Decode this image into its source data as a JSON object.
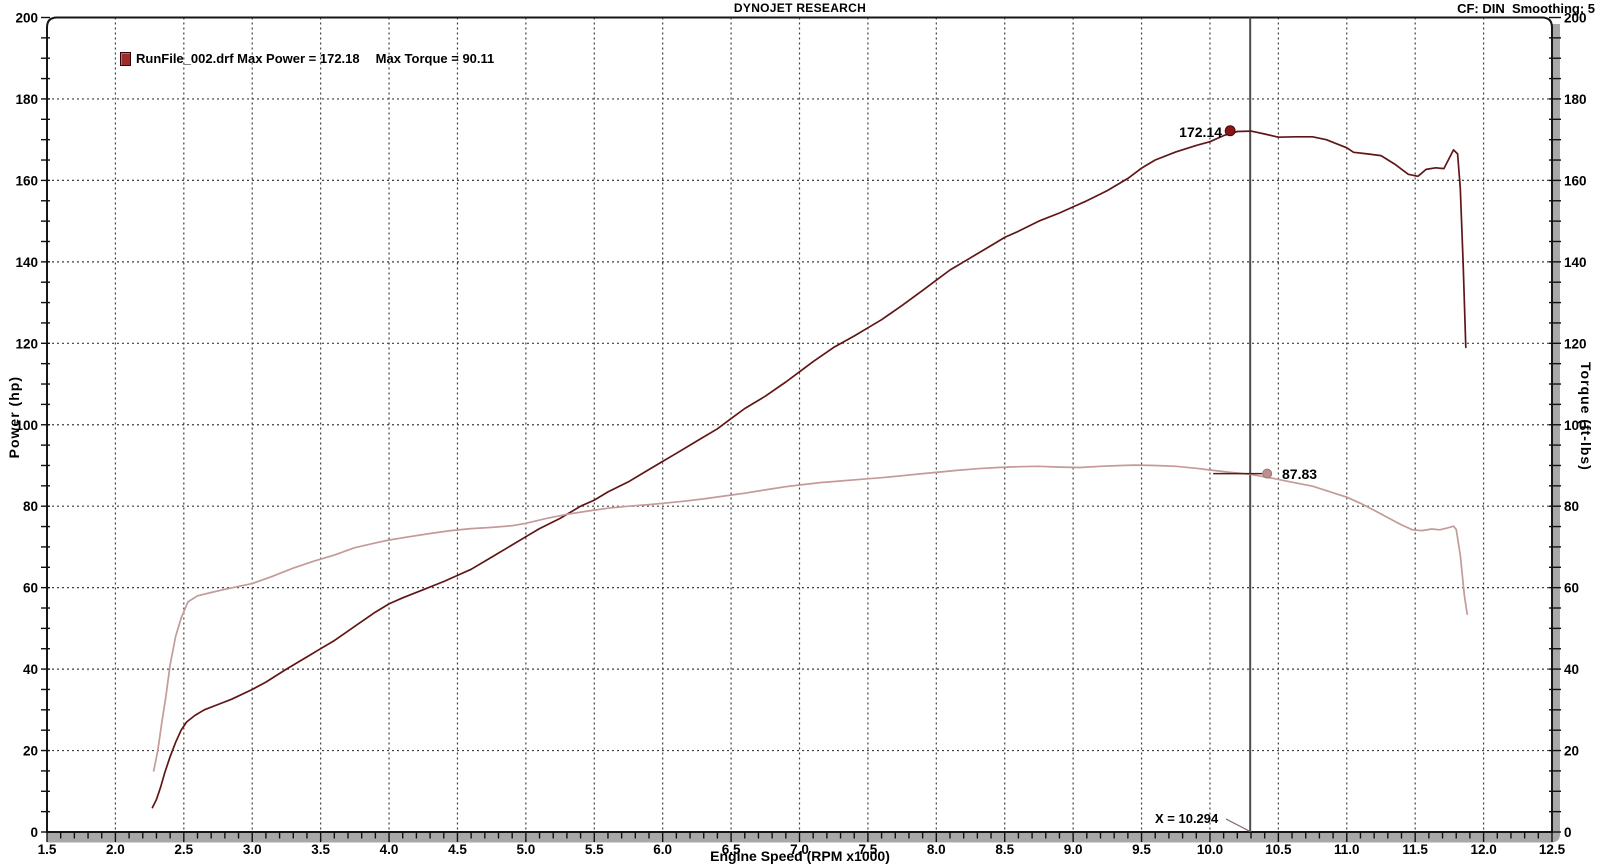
{
  "header": {
    "title": "DYNOJET RESEARCH",
    "corner_note": "CF: DIN  Smoothing: 5"
  },
  "legend": {
    "entry": "RunFile_002.drf Max Power = 172.18",
    "entry2": "Max Torque = 90.11",
    "marker_color": "#9e2c2c"
  },
  "cursor": {
    "x_label": "X = 10.294",
    "x_value": 10.294,
    "power_readout": "172.14",
    "torque_readout": "87.83"
  },
  "axes": {
    "x": {
      "label": "Engine Speed (RPM x1000)",
      "min": 1.5,
      "max": 12.5,
      "major_step": 0.5,
      "minor_step": 0.1
    },
    "y_left": {
      "label": "Power (hp)",
      "min": 0,
      "max": 200,
      "major_step": 20,
      "minor_step": 5
    },
    "y_right": {
      "label": "Torque (ft-lbs)",
      "min": 0,
      "max": 200,
      "major_step": 20,
      "minor_step": 5
    }
  },
  "colors": {
    "power_line": "#601616",
    "torque_line": "#c49a9a",
    "power_dot": "#8b1515",
    "torque_dot": "#bd8f8f",
    "grid": "#3f3f3f",
    "frame": "#161616",
    "axis_bar": "#a8a8a8",
    "cursor_line": "#4d4d4d",
    "leader": "#806060"
  },
  "chart_data": {
    "type": "line",
    "title": "DYNOJET RESEARCH",
    "xlabel": "Engine Speed (RPM x1000)",
    "ylabel_left": "Power (hp)",
    "ylabel_right": "Torque (ft-lbs)",
    "xlim": [
      1.5,
      12.5
    ],
    "ylim": [
      0,
      200
    ],
    "grid": "dashed",
    "legend_position": "top-left",
    "cursor": {
      "x": 10.294,
      "power": 172.14,
      "torque": 87.83
    },
    "series": [
      {
        "name": "Power (hp)",
        "file": "RunFile_002.drf",
        "max": 172.18,
        "color": "#601616",
        "points": [
          [
            2.27,
            6
          ],
          [
            2.3,
            8
          ],
          [
            2.33,
            11
          ],
          [
            2.36,
            14.5
          ],
          [
            2.4,
            18.5
          ],
          [
            2.44,
            22
          ],
          [
            2.48,
            25
          ],
          [
            2.52,
            27
          ],
          [
            2.58,
            28.6
          ],
          [
            2.65,
            30
          ],
          [
            2.75,
            31.3
          ],
          [
            2.85,
            32.6
          ],
          [
            3.0,
            35
          ],
          [
            3.1,
            36.8
          ],
          [
            3.25,
            40
          ],
          [
            3.4,
            43
          ],
          [
            3.5,
            45
          ],
          [
            3.6,
            47
          ],
          [
            3.75,
            50.5
          ],
          [
            3.9,
            54
          ],
          [
            4.0,
            56
          ],
          [
            4.1,
            57.5
          ],
          [
            4.25,
            59.5
          ],
          [
            4.4,
            61.5
          ],
          [
            4.5,
            63
          ],
          [
            4.6,
            64.5
          ],
          [
            4.75,
            67.5
          ],
          [
            4.9,
            70.5
          ],
          [
            5.0,
            72.5
          ],
          [
            5.1,
            74.5
          ],
          [
            5.25,
            77
          ],
          [
            5.4,
            80
          ],
          [
            5.5,
            81.5
          ],
          [
            5.6,
            83.5
          ],
          [
            5.75,
            86
          ],
          [
            5.9,
            89
          ],
          [
            6.0,
            91
          ],
          [
            6.1,
            93
          ],
          [
            6.25,
            96
          ],
          [
            6.4,
            99
          ],
          [
            6.5,
            101.5
          ],
          [
            6.6,
            104
          ],
          [
            6.75,
            107
          ],
          [
            6.9,
            110.5
          ],
          [
            7.0,
            113
          ],
          [
            7.1,
            115.5
          ],
          [
            7.25,
            119
          ],
          [
            7.4,
            121.8
          ],
          [
            7.5,
            123.8
          ],
          [
            7.6,
            125.8
          ],
          [
            7.75,
            129.3
          ],
          [
            7.9,
            133
          ],
          [
            8.0,
            135.5
          ],
          [
            8.1,
            138
          ],
          [
            8.25,
            141
          ],
          [
            8.4,
            144
          ],
          [
            8.5,
            146
          ],
          [
            8.6,
            147.5
          ],
          [
            8.75,
            150
          ],
          [
            8.9,
            152
          ],
          [
            9.0,
            153.5
          ],
          [
            9.1,
            155
          ],
          [
            9.25,
            157.5
          ],
          [
            9.4,
            160.5
          ],
          [
            9.5,
            163
          ],
          [
            9.6,
            165
          ],
          [
            9.75,
            167
          ],
          [
            9.9,
            168.6
          ],
          [
            10.0,
            169.5
          ],
          [
            10.1,
            171
          ],
          [
            10.2,
            172
          ],
          [
            10.3,
            172.1
          ],
          [
            10.4,
            171.4
          ],
          [
            10.5,
            170.6
          ],
          [
            10.62,
            170.7
          ],
          [
            10.75,
            170.7
          ],
          [
            10.85,
            170
          ],
          [
            11.0,
            168
          ],
          [
            11.05,
            166.9
          ],
          [
            11.15,
            166.5
          ],
          [
            11.25,
            166.1
          ],
          [
            11.35,
            164
          ],
          [
            11.45,
            161.5
          ],
          [
            11.52,
            161
          ],
          [
            11.58,
            162.7
          ],
          [
            11.65,
            163.1
          ],
          [
            11.71,
            162.9
          ],
          [
            11.78,
            167.5
          ],
          [
            11.81,
            166.5
          ],
          [
            11.83,
            158
          ],
          [
            11.85,
            140
          ],
          [
            11.87,
            119
          ]
        ]
      },
      {
        "name": "Torque (ft-lbs)",
        "file": "RunFile_002.drf",
        "max": 90.11,
        "color": "#c49a9a",
        "points": [
          [
            2.28,
            15
          ],
          [
            2.31,
            20
          ],
          [
            2.34,
            27
          ],
          [
            2.37,
            33.5
          ],
          [
            2.4,
            41
          ],
          [
            2.44,
            48
          ],
          [
            2.48,
            52.5
          ],
          [
            2.53,
            56.5
          ],
          [
            2.6,
            58
          ],
          [
            2.7,
            58.8
          ],
          [
            2.8,
            59.6
          ],
          [
            2.9,
            60.3
          ],
          [
            3.0,
            61
          ],
          [
            3.15,
            62.8
          ],
          [
            3.3,
            64.8
          ],
          [
            3.45,
            66.5
          ],
          [
            3.6,
            68
          ],
          [
            3.75,
            69.8
          ],
          [
            3.9,
            71
          ],
          [
            4.0,
            71.7
          ],
          [
            4.15,
            72.5
          ],
          [
            4.3,
            73.3
          ],
          [
            4.45,
            74
          ],
          [
            4.6,
            74.5
          ],
          [
            4.75,
            74.8
          ],
          [
            4.9,
            75.2
          ],
          [
            5.0,
            75.8
          ],
          [
            5.15,
            77
          ],
          [
            5.3,
            78
          ],
          [
            5.45,
            78.8
          ],
          [
            5.6,
            79.5
          ],
          [
            5.75,
            80
          ],
          [
            5.9,
            80.4
          ],
          [
            6.0,
            80.7
          ],
          [
            6.15,
            81.2
          ],
          [
            6.3,
            81.8
          ],
          [
            6.45,
            82.5
          ],
          [
            6.6,
            83.2
          ],
          [
            6.75,
            84
          ],
          [
            6.9,
            84.8
          ],
          [
            7.0,
            85.2
          ],
          [
            7.15,
            85.8
          ],
          [
            7.3,
            86.2
          ],
          [
            7.45,
            86.6
          ],
          [
            7.6,
            87
          ],
          [
            7.75,
            87.5
          ],
          [
            7.9,
            88
          ],
          [
            8.0,
            88.3
          ],
          [
            8.15,
            88.8
          ],
          [
            8.3,
            89.2
          ],
          [
            8.45,
            89.5
          ],
          [
            8.6,
            89.7
          ],
          [
            8.75,
            89.8
          ],
          [
            8.9,
            89.6
          ],
          [
            9.05,
            89.5
          ],
          [
            9.2,
            89.8
          ],
          [
            9.35,
            90
          ],
          [
            9.45,
            90.1
          ],
          [
            9.6,
            90
          ],
          [
            9.75,
            89.8
          ],
          [
            9.9,
            89.3
          ],
          [
            10.0,
            88.9
          ],
          [
            10.15,
            88.3
          ],
          [
            10.3,
            87.8
          ],
          [
            10.45,
            86.9
          ],
          [
            10.6,
            85.9
          ],
          [
            10.75,
            84.9
          ],
          [
            10.9,
            83.3
          ],
          [
            11.0,
            82.2
          ],
          [
            11.1,
            80.7
          ],
          [
            11.2,
            79
          ],
          [
            11.3,
            77.2
          ],
          [
            11.4,
            75.4
          ],
          [
            11.48,
            74.2
          ],
          [
            11.55,
            74
          ],
          [
            11.62,
            74.4
          ],
          [
            11.68,
            74.2
          ],
          [
            11.74,
            74.7
          ],
          [
            11.78,
            75.1
          ],
          [
            11.8,
            74.3
          ],
          [
            11.83,
            68
          ],
          [
            11.86,
            58
          ],
          [
            11.88,
            53.5
          ]
        ]
      }
    ]
  }
}
